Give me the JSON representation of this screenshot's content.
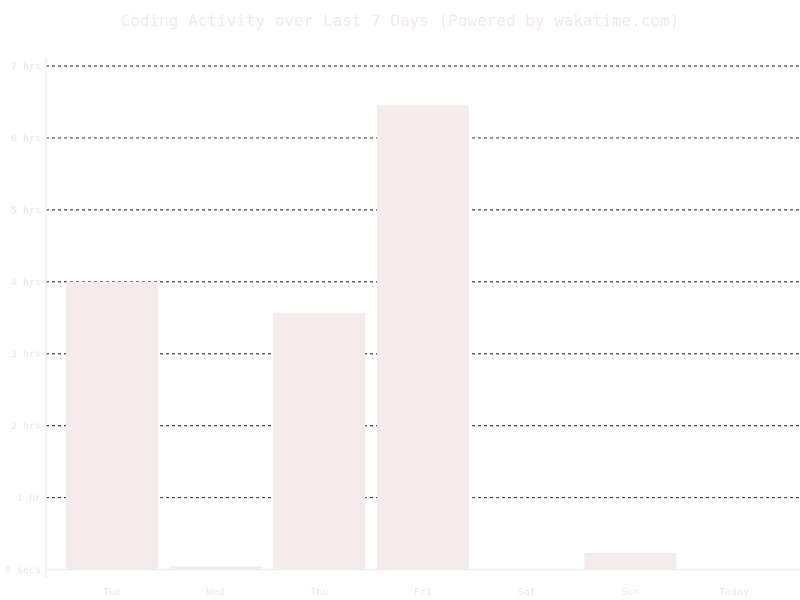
{
  "chart_data": {
    "type": "bar",
    "title": "Coding Activity over Last 7 Days (Powered by wakatime.com)",
    "categories": [
      "Tue",
      "Wed",
      "Thu",
      "Fri",
      "Sat",
      "Sun",
      "Today"
    ],
    "values": [
      4.0,
      0.04,
      3.57,
      6.45,
      0,
      0.23,
      0
    ],
    "unit": "hours",
    "ylim": [
      0,
      7
    ],
    "yticks": [
      {
        "value": 0,
        "label": "0 secs"
      },
      {
        "value": 1,
        "label": "1 hr"
      },
      {
        "value": 2,
        "label": "2 hrs"
      },
      {
        "value": 3,
        "label": "3 hrs"
      },
      {
        "value": 4,
        "label": "4 hrs"
      },
      {
        "value": 5,
        "label": "5 hrs"
      },
      {
        "value": 6,
        "label": "6 hrs"
      },
      {
        "value": 7,
        "label": "7 hrs"
      }
    ],
    "grid": true,
    "bar_color": "#f5eaec",
    "grid_color": "#444444",
    "text_color": "#f0e6e8"
  }
}
